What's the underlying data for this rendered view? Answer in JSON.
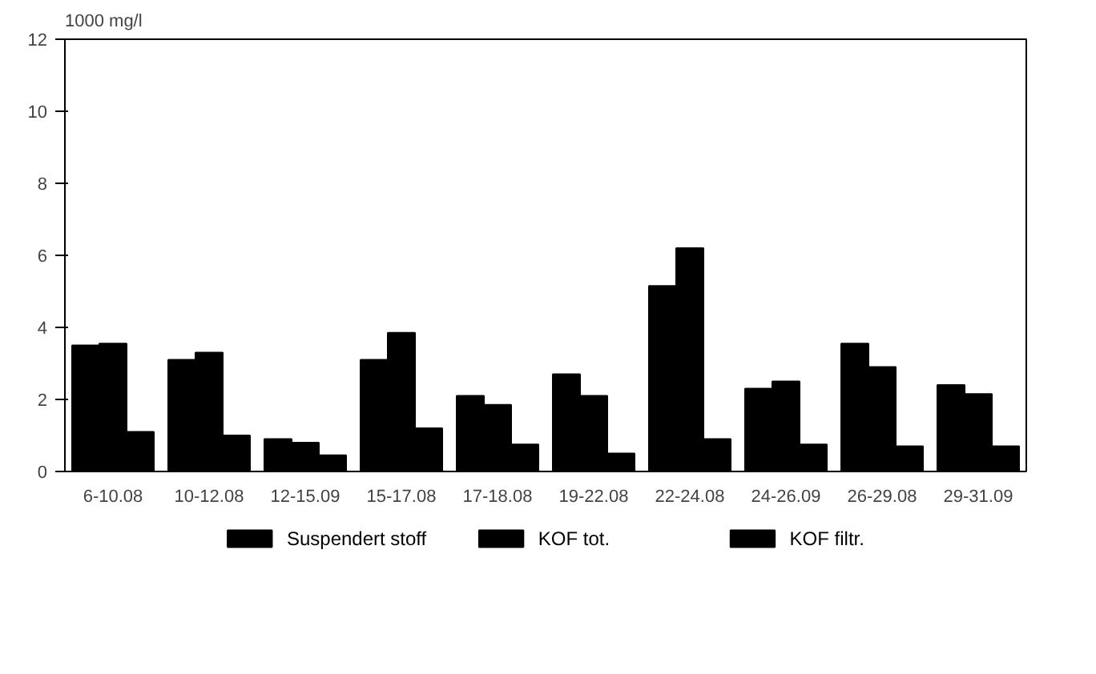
{
  "chart_data": {
    "type": "bar",
    "ylabel": "1000 mg/l",
    "categories": [
      "6-10.08",
      "10-12.08",
      "12-15.09",
      "15-17.08",
      "17-18.08",
      "19-22.08",
      "22-24.08",
      "24-26.09",
      "26-29.08",
      "29-31.09"
    ],
    "series": [
      {
        "name": "Suspendert stoff",
        "color": "#000000",
        "values": [
          3.5,
          3.1,
          0.9,
          3.1,
          2.1,
          2.7,
          5.15,
          2.3,
          3.55,
          2.4
        ]
      },
      {
        "name": "KOF tot.",
        "color": "#000000",
        "values": [
          3.55,
          3.3,
          0.8,
          3.85,
          1.85,
          2.1,
          6.2,
          2.5,
          2.9,
          2.15
        ]
      },
      {
        "name": "KOF filtr.",
        "color": "#000000",
        "values": [
          1.1,
          1.0,
          0.45,
          1.2,
          0.75,
          0.5,
          0.9,
          0.75,
          0.7,
          0.7
        ]
      }
    ],
    "ylim": [
      0,
      12
    ],
    "yticks": [
      0,
      2,
      4,
      6,
      8,
      10,
      12
    ],
    "grid": false,
    "legend": "bottom"
  }
}
